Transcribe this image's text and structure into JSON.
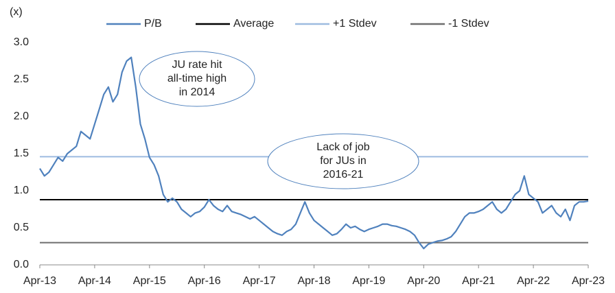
{
  "chart_data": {
    "type": "line",
    "y_label": "(x)",
    "categories": [
      "Apr-13",
      null,
      null,
      null,
      null,
      null,
      null,
      null,
      null,
      null,
      null,
      null,
      "Apr-14",
      null,
      null,
      null,
      null,
      null,
      null,
      null,
      null,
      null,
      null,
      null,
      "Apr-15",
      null,
      null,
      null,
      null,
      null,
      null,
      null,
      null,
      null,
      null,
      null,
      "Apr-16",
      null,
      null,
      null,
      null,
      null,
      null,
      null,
      null,
      null,
      null,
      null,
      "Apr-17",
      null,
      null,
      null,
      null,
      null,
      null,
      null,
      null,
      null,
      null,
      null,
      "Apr-18",
      null,
      null,
      null,
      null,
      null,
      null,
      null,
      null,
      null,
      null,
      null,
      "Apr-19",
      null,
      null,
      null,
      null,
      null,
      null,
      null,
      null,
      null,
      null,
      null,
      "Apr-20",
      null,
      null,
      null,
      null,
      null,
      null,
      null,
      null,
      null,
      null,
      null,
      "Apr-21",
      null,
      null,
      null,
      null,
      null,
      null,
      null,
      null,
      null,
      null,
      null,
      "Apr-22",
      null,
      null,
      null,
      null,
      null,
      null,
      null,
      null,
      null,
      null,
      null,
      "Apr-23"
    ],
    "series": [
      {
        "name": "P/B",
        "color": "#4f81bd",
        "values": [
          1.3,
          1.2,
          1.25,
          1.35,
          1.45,
          1.4,
          1.5,
          1.55,
          1.6,
          1.8,
          1.75,
          1.7,
          1.9,
          2.1,
          2.3,
          2.4,
          2.2,
          2.3,
          2.6,
          2.75,
          2.8,
          2.4,
          1.9,
          1.7,
          1.45,
          1.35,
          1.2,
          0.95,
          0.85,
          0.9,
          0.85,
          0.75,
          0.7,
          0.65,
          0.7,
          0.72,
          0.78,
          0.88,
          0.8,
          0.75,
          0.72,
          0.8,
          0.72,
          0.7,
          0.68,
          0.65,
          0.62,
          0.65,
          0.6,
          0.55,
          0.5,
          0.45,
          0.42,
          0.4,
          0.45,
          0.48,
          0.55,
          0.7,
          0.85,
          0.7,
          0.6,
          0.55,
          0.5,
          0.45,
          0.4,
          0.42,
          0.48,
          0.55,
          0.5,
          0.52,
          0.48,
          0.45,
          0.48,
          0.5,
          0.52,
          0.55,
          0.55,
          0.53,
          0.52,
          0.5,
          0.48,
          0.45,
          0.4,
          0.3,
          0.22,
          0.28,
          0.3,
          0.32,
          0.33,
          0.35,
          0.38,
          0.45,
          0.55,
          0.65,
          0.7,
          0.7,
          0.72,
          0.75,
          0.8,
          0.85,
          0.75,
          0.7,
          0.75,
          0.85,
          0.95,
          1.0,
          1.2,
          0.95,
          0.9,
          0.85,
          0.7,
          0.75,
          0.8,
          0.7,
          0.65,
          0.75,
          0.6,
          0.8,
          0.85,
          0.85,
          0.86
        ]
      }
    ],
    "reference_lines": [
      {
        "name": "Average",
        "color": "#000000",
        "value": 0.88
      },
      {
        "name": "+1 Stdev",
        "color": "#9dbbe0",
        "value": 1.46
      },
      {
        "name": "-1 Stdev",
        "color": "#6e6e6e",
        "value": 0.3
      }
    ],
    "ylim": [
      0,
      3
    ],
    "yticks": [
      {
        "value": 0,
        "label": "0.0"
      },
      {
        "value": 0.5,
        "label": "0.5"
      },
      {
        "value": 1,
        "label": "1.0"
      },
      {
        "value": 1.5,
        "label": "1.5"
      },
      {
        "value": 2,
        "label": "2.0"
      },
      {
        "value": 2.5,
        "label": "2.5"
      },
      {
        "value": 3,
        "label": "3.0"
      }
    ],
    "annotations": [
      {
        "lines": [
          "JU rate hit",
          "all-time high",
          "in 2014"
        ]
      },
      {
        "lines": [
          "Lack of job",
          "for JUs in",
          "2016-21"
        ]
      }
    ]
  }
}
